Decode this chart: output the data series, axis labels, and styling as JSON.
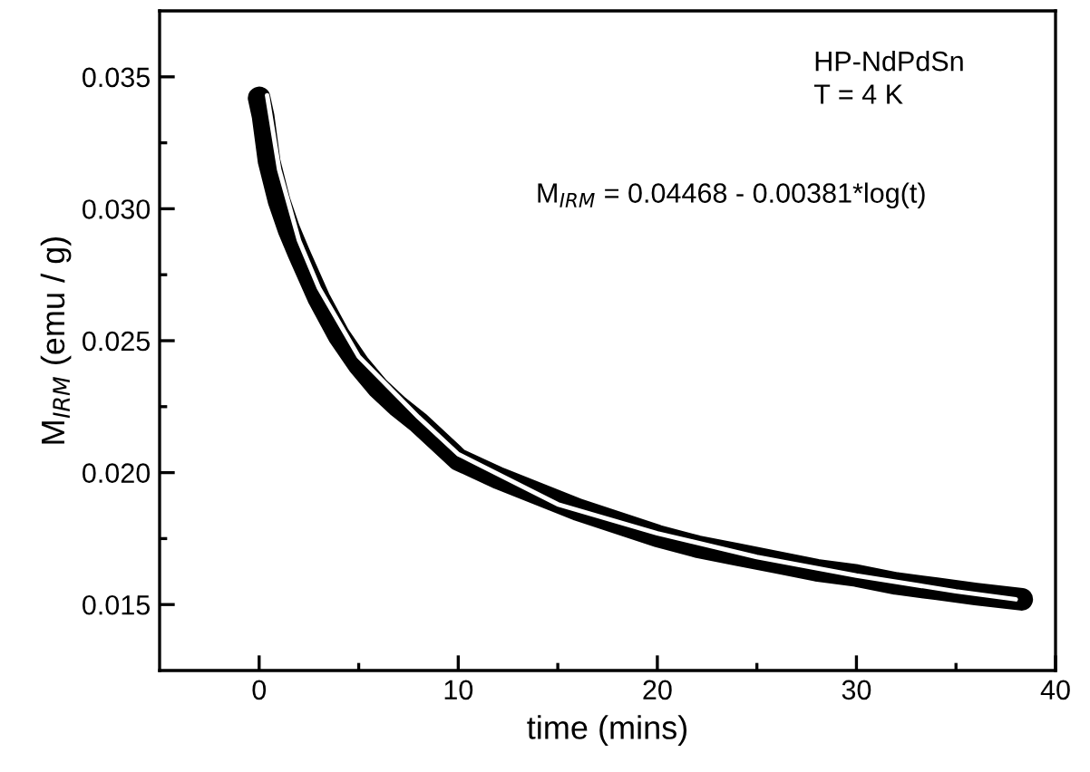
{
  "chart_data": {
    "type": "line",
    "xlabel": "time (mins)",
    "ylabel": "M$_{IRM}$ (emu / g)",
    "xlim": [
      -5,
      40
    ],
    "ylim": [
      0.0125,
      0.0375
    ],
    "xticks": [
      0,
      {
        "value": 5,
        "label": null
      },
      10,
      {
        "value": 15,
        "label": null
      },
      20,
      {
        "value": 25,
        "label": null
      },
      30,
      {
        "value": 35,
        "label": null
      },
      40
    ],
    "yticks": [
      0.015,
      {
        "value": 0.0175,
        "label": null
      },
      "0.020",
      {
        "value": 0.0225,
        "label": null
      },
      0.025,
      {
        "value": 0.0275,
        "label": null
      },
      "0.030",
      {
        "value": 0.0325,
        "label": null
      },
      0.035
    ],
    "marker": "none",
    "grid": false,
    "legend": false,
    "annotations": [
      "HP-NdPdSn",
      "T = 4 K",
      "M$_{IRM}$ = 0.04468 - 0.00381*log(t)"
    ],
    "series": [
      {
        "color": "#000000",
        "x": [
          0,
          0.2,
          0.5,
          1,
          1.5,
          2,
          3,
          4,
          5,
          6,
          7,
          8,
          10,
          12,
          14,
          16,
          18,
          20,
          22,
          24,
          26,
          28,
          30,
          32,
          34,
          36,
          38.3
        ],
        "values": [
          0.0342,
          0.0335,
          0.0318,
          0.0303,
          0.0292,
          0.0283,
          0.0266,
          0.0252,
          0.0241,
          0.0232,
          0.0225,
          0.0219,
          0.0205,
          0.0198,
          0.0192,
          0.0186,
          0.0181,
          0.0176,
          0.0172,
          0.0169,
          0.0166,
          0.0163,
          0.0161,
          0.0158,
          0.0156,
          0.0154,
          0.0152
        ]
      },
      {
        "color": "#ffffff",
        "x": [
          0.4,
          1,
          2,
          3,
          5,
          8,
          10,
          15,
          20,
          25,
          30,
          35,
          38
        ],
        "values": [
          0.0343,
          0.0315,
          0.0288,
          0.027,
          0.0244,
          0.0221,
          0.0207,
          0.0188,
          0.0177,
          0.0168,
          0.0161,
          0.0155,
          0.0152
        ]
      }
    ]
  }
}
